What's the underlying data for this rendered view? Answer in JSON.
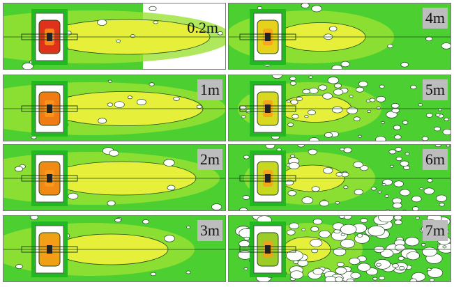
{
  "panels": [
    {
      "label": "0.2m",
      "style": "white-right",
      "core": "#e0321a",
      "plume": 0.9
    },
    {
      "label": "1m",
      "style": "green",
      "core": "#f07a14",
      "plume": 0.85
    },
    {
      "label": "2m",
      "style": "green",
      "core": "#f08a14",
      "plume": 0.8
    },
    {
      "label": "3m",
      "style": "green",
      "core": "#f0a014",
      "plume": 0.6
    },
    {
      "label": "4m",
      "style": "green",
      "core": "#e6d21a",
      "plume": 0.45
    },
    {
      "label": "5m",
      "style": "speckle",
      "core": "#d8d820",
      "plume": 0.35
    },
    {
      "label": "6m",
      "style": "speckle",
      "core": "#c8d820",
      "plume": 0.3
    },
    {
      "label": "7m",
      "style": "heavy",
      "core": "#9ccc28",
      "plume": 0.2
    }
  ],
  "colors": {
    "field_dark": "#22b822",
    "field": "#4ccf30",
    "field_light": "#9be234",
    "plume": "#e6ef3a",
    "hot": "#ff9a1a",
    "contour": "#1d4a1d",
    "label_bg": "#bdbdbd"
  }
}
